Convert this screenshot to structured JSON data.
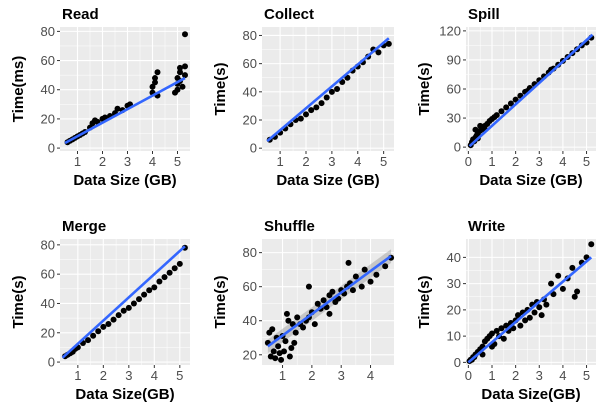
{
  "figure": {
    "panel_bg": "#ebebeb",
    "grid_color": "#ffffff",
    "point_color": "#000000",
    "line_color": "#3366ff",
    "ribbon_color": "#999999"
  },
  "chart_data": [
    {
      "type": "scatter",
      "title": "Read",
      "xlabel": "Data Size (GB)",
      "ylabel": "Time(ms)",
      "xlim": [
        0.3,
        5.5
      ],
      "ylim": [
        -2,
        83
      ],
      "xticks": [
        1,
        2,
        3,
        4,
        5
      ],
      "yticks": [
        0,
        20,
        40,
        60,
        80
      ],
      "grid": true,
      "smooth": "linear",
      "points": [
        [
          0.6,
          4
        ],
        [
          0.7,
          5
        ],
        [
          0.8,
          6
        ],
        [
          0.9,
          7
        ],
        [
          1.0,
          8
        ],
        [
          1.1,
          9
        ],
        [
          1.2,
          10
        ],
        [
          1.3,
          11
        ],
        [
          1.5,
          14
        ],
        [
          1.6,
          17
        ],
        [
          1.7,
          19
        ],
        [
          1.8,
          18
        ],
        [
          2.0,
          20
        ],
        [
          2.1,
          21
        ],
        [
          2.3,
          22
        ],
        [
          2.5,
          24
        ],
        [
          2.6,
          27
        ],
        [
          2.8,
          26
        ],
        [
          3.0,
          29
        ],
        [
          3.1,
          30
        ],
        [
          4.0,
          38
        ],
        [
          4.0,
          42
        ],
        [
          4.1,
          45
        ],
        [
          4.1,
          48
        ],
        [
          4.2,
          52
        ],
        [
          4.2,
          36
        ],
        [
          5.0,
          40
        ],
        [
          5.0,
          44
        ],
        [
          5.0,
          48
        ],
        [
          5.1,
          52
        ],
        [
          5.1,
          55
        ],
        [
          5.1,
          46
        ],
        [
          5.2,
          42
        ],
        [
          5.3,
          50
        ],
        [
          5.3,
          56
        ],
        [
          5.3,
          78
        ],
        [
          4.9,
          38
        ]
      ],
      "fit": [
        [
          0.5,
          3.5
        ],
        [
          5.3,
          48
        ]
      ]
    },
    {
      "type": "scatter",
      "title": "Collect",
      "xlabel": "Data Size (GB)",
      "ylabel": "Time(s)",
      "xlim": [
        0.3,
        5.4
      ],
      "ylim": [
        -2,
        86
      ],
      "xticks": [
        1,
        2,
        3,
        4,
        5
      ],
      "yticks": [
        0,
        20,
        40,
        60,
        80
      ],
      "grid": true,
      "smooth": "linear",
      "points": [
        [
          0.6,
          6
        ],
        [
          0.8,
          8
        ],
        [
          1.0,
          11
        ],
        [
          1.2,
          14
        ],
        [
          1.4,
          17
        ],
        [
          1.6,
          20
        ],
        [
          1.8,
          21
        ],
        [
          2.0,
          24
        ],
        [
          2.2,
          27
        ],
        [
          2.4,
          29
        ],
        [
          2.6,
          32
        ],
        [
          2.8,
          36
        ],
        [
          3.0,
          40
        ],
        [
          3.2,
          42
        ],
        [
          3.4,
          47
        ],
        [
          3.6,
          50
        ],
        [
          3.8,
          55
        ],
        [
          4.0,
          58
        ],
        [
          4.2,
          61
        ],
        [
          4.4,
          65
        ],
        [
          4.6,
          70
        ],
        [
          4.8,
          68
        ],
        [
          5.0,
          73
        ],
        [
          5.2,
          74
        ]
      ],
      "fit": [
        [
          0.5,
          5
        ],
        [
          5.2,
          78
        ]
      ]
    },
    {
      "type": "scatter",
      "title": "Spill",
      "xlabel": "Data Size (GB)",
      "ylabel": "Time(s)",
      "xlim": [
        -0.1,
        5.4
      ],
      "ylim": [
        -4,
        124
      ],
      "xticks": [
        0,
        1,
        2,
        3,
        4,
        5
      ],
      "yticks": [
        0,
        30,
        60,
        90,
        120
      ],
      "grid": true,
      "smooth": "linear",
      "points": [
        [
          0.1,
          2
        ],
        [
          0.15,
          5
        ],
        [
          0.2,
          8
        ],
        [
          0.25,
          6
        ],
        [
          0.3,
          10
        ],
        [
          0.35,
          12
        ],
        [
          0.4,
          14
        ],
        [
          0.5,
          17
        ],
        [
          0.6,
          20
        ],
        [
          0.7,
          22
        ],
        [
          0.8,
          24
        ],
        [
          0.9,
          27
        ],
        [
          1.0,
          29
        ],
        [
          1.2,
          33
        ],
        [
          1.4,
          37
        ],
        [
          1.6,
          41
        ],
        [
          1.8,
          45
        ],
        [
          2.0,
          49
        ],
        [
          2.2,
          53
        ],
        [
          2.4,
          57
        ],
        [
          2.6,
          61
        ],
        [
          2.8,
          65
        ],
        [
          3.0,
          69
        ],
        [
          3.2,
          73
        ],
        [
          3.4,
          77
        ],
        [
          3.6,
          81
        ],
        [
          3.8,
          85
        ],
        [
          4.0,
          89
        ],
        [
          4.2,
          93
        ],
        [
          4.4,
          97
        ],
        [
          4.6,
          101
        ],
        [
          4.8,
          105
        ],
        [
          5.0,
          108
        ],
        [
          5.2,
          113
        ],
        [
          0.3,
          18
        ],
        [
          0.5,
          22
        ],
        [
          0.4,
          9
        ],
        [
          0.7,
          18
        ],
        [
          1.1,
          31
        ],
        [
          2.5,
          58
        ],
        [
          3.5,
          80
        ]
      ],
      "fit": [
        [
          0.05,
          1
        ],
        [
          5.25,
          116
        ]
      ]
    },
    {
      "type": "scatter",
      "title": "Merge",
      "xlabel": "Data Size(GB)",
      "ylabel": "Time(s)",
      "xlim": [
        0.3,
        5.4
      ],
      "ylim": [
        -2,
        84
      ],
      "xticks": [
        1,
        2,
        3,
        4,
        5
      ],
      "yticks": [
        0,
        20,
        40,
        60,
        80
      ],
      "grid": true,
      "smooth": "linear",
      "points": [
        [
          0.5,
          4
        ],
        [
          0.6,
          5
        ],
        [
          0.7,
          6
        ],
        [
          0.8,
          7
        ],
        [
          0.9,
          9
        ],
        [
          1.0,
          10
        ],
        [
          1.2,
          13
        ],
        [
          1.4,
          15
        ],
        [
          1.6,
          18
        ],
        [
          1.8,
          21
        ],
        [
          2.0,
          24
        ],
        [
          2.2,
          26
        ],
        [
          2.4,
          29
        ],
        [
          2.6,
          32
        ],
        [
          2.8,
          35
        ],
        [
          3.0,
          37
        ],
        [
          3.2,
          40
        ],
        [
          3.4,
          43
        ],
        [
          3.6,
          46
        ],
        [
          3.8,
          49
        ],
        [
          4.0,
          51
        ],
        [
          4.2,
          55
        ],
        [
          4.4,
          58
        ],
        [
          4.6,
          61
        ],
        [
          4.8,
          64
        ],
        [
          5.0,
          67
        ],
        [
          5.2,
          78
        ]
      ],
      "fit": [
        [
          0.4,
          3
        ],
        [
          5.2,
          79
        ]
      ]
    },
    {
      "type": "scatter",
      "title": "Shuffle",
      "xlabel": "",
      "ylabel": "Time(s)",
      "xlim": [
        0.3,
        4.8
      ],
      "ylim": [
        14,
        88
      ],
      "xticks": [
        1,
        2,
        3,
        4
      ],
      "yticks": [
        20,
        40,
        60,
        80
      ],
      "grid": true,
      "smooth": "linear",
      "ribbon": true,
      "points": [
        [
          0.5,
          27
        ],
        [
          0.55,
          33
        ],
        [
          0.6,
          19
        ],
        [
          0.65,
          35
        ],
        [
          0.7,
          22
        ],
        [
          0.75,
          18
        ],
        [
          0.8,
          30
        ],
        [
          0.85,
          25
        ],
        [
          0.9,
          21
        ],
        [
          0.95,
          17
        ],
        [
          1.0,
          31
        ],
        [
          1.05,
          22
        ],
        [
          1.1,
          28
        ],
        [
          1.15,
          44
        ],
        [
          1.2,
          40
        ],
        [
          1.25,
          19
        ],
        [
          1.3,
          24
        ],
        [
          1.35,
          38
        ],
        [
          1.4,
          27
        ],
        [
          1.45,
          33
        ],
        [
          1.5,
          42
        ],
        [
          1.6,
          38
        ],
        [
          1.7,
          36
        ],
        [
          1.8,
          40
        ],
        [
          1.9,
          42
        ],
        [
          2.0,
          45
        ],
        [
          2.1,
          38
        ],
        [
          2.2,
          50
        ],
        [
          2.3,
          47
        ],
        [
          2.4,
          52
        ],
        [
          2.5,
          48
        ],
        [
          2.6,
          55
        ],
        [
          2.7,
          57
        ],
        [
          2.8,
          51
        ],
        [
          2.9,
          53
        ],
        [
          3.0,
          58
        ],
        [
          3.1,
          56
        ],
        [
          3.2,
          60
        ],
        [
          3.3,
          62
        ],
        [
          3.4,
          58
        ],
        [
          3.5,
          66
        ],
        [
          3.7,
          60
        ],
        [
          3.8,
          70
        ],
        [
          4.0,
          63
        ],
        [
          4.2,
          67
        ],
        [
          4.5,
          72
        ],
        [
          4.7,
          77
        ],
        [
          3.25,
          74
        ],
        [
          2.6,
          44
        ],
        [
          1.9,
          60
        ]
      ],
      "fit": [
        [
          0.5,
          25
        ],
        [
          4.7,
          78
        ]
      ]
    },
    {
      "type": "scatter",
      "title": "Write",
      "xlabel": "Data Size(GB)",
      "ylabel": "Time(s)",
      "xlim": [
        -0.1,
        5.4
      ],
      "ylim": [
        -1,
        47
      ],
      "xticks": [
        0,
        1,
        2,
        3,
        4,
        5
      ],
      "yticks": [
        0,
        10,
        20,
        30,
        40
      ],
      "grid": true,
      "smooth": "linear",
      "points": [
        [
          0.05,
          0.5
        ],
        [
          0.1,
          1
        ],
        [
          0.15,
          1
        ],
        [
          0.2,
          2
        ],
        [
          0.25,
          2
        ],
        [
          0.3,
          3
        ],
        [
          0.4,
          4
        ],
        [
          0.5,
          5
        ],
        [
          0.6,
          6
        ],
        [
          0.7,
          8
        ],
        [
          0.8,
          9
        ],
        [
          0.9,
          10
        ],
        [
          1.0,
          11
        ],
        [
          1.1,
          7
        ],
        [
          1.2,
          12
        ],
        [
          1.3,
          10
        ],
        [
          1.4,
          13
        ],
        [
          1.5,
          9
        ],
        [
          1.6,
          14
        ],
        [
          1.7,
          12
        ],
        [
          1.8,
          15
        ],
        [
          1.9,
          13
        ],
        [
          2.0,
          16
        ],
        [
          2.1,
          18
        ],
        [
          2.2,
          14
        ],
        [
          2.3,
          19
        ],
        [
          2.4,
          16
        ],
        [
          2.5,
          20
        ],
        [
          2.6,
          17
        ],
        [
          2.7,
          22
        ],
        [
          2.8,
          19
        ],
        [
          2.9,
          23
        ],
        [
          3.0,
          21
        ],
        [
          3.1,
          18
        ],
        [
          3.2,
          24
        ],
        [
          3.3,
          22
        ],
        [
          3.5,
          30
        ],
        [
          3.6,
          26
        ],
        [
          3.8,
          33
        ],
        [
          4.0,
          28
        ],
        [
          4.2,
          32
        ],
        [
          4.4,
          36
        ],
        [
          4.5,
          25
        ],
        [
          4.6,
          27
        ],
        [
          4.8,
          38
        ],
        [
          5.0,
          40
        ],
        [
          5.2,
          45
        ],
        [
          0.6,
          3
        ],
        [
          1.0,
          6
        ]
      ],
      "fit": [
        [
          0.0,
          0
        ],
        [
          5.2,
          40
        ]
      ]
    }
  ]
}
